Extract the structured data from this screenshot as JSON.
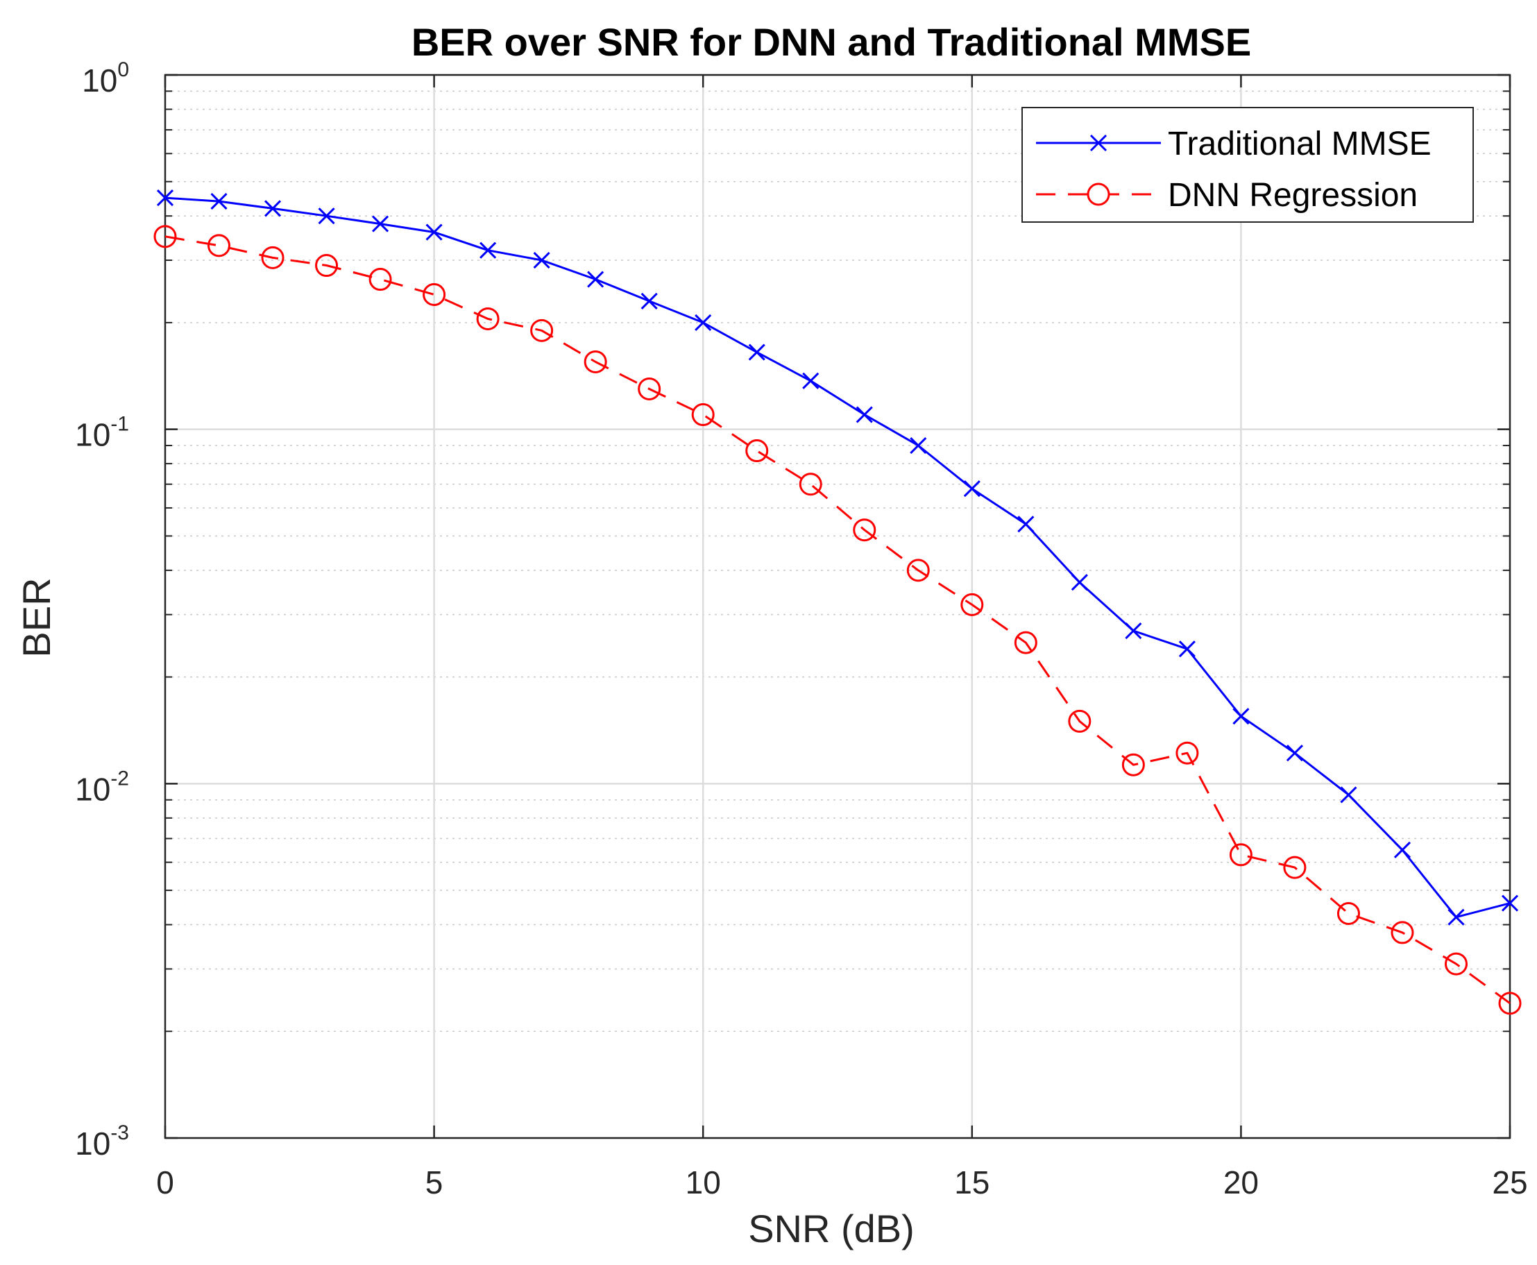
{
  "chart_data": {
    "type": "line",
    "title": "BER over SNR for DNN and Traditional MMSE",
    "xlabel": "SNR (dB)",
    "ylabel": "BER",
    "xlim": [
      0,
      25
    ],
    "ylim": [
      0.001,
      1
    ],
    "yscale": "log",
    "grid": true,
    "legend_position": "top-right",
    "x_ticks": [
      "0",
      "5",
      "10",
      "15",
      "20",
      "25"
    ],
    "y_ticks": [
      {
        "base": "10",
        "exp": "0"
      },
      {
        "base": "10",
        "exp": "-1"
      },
      {
        "base": "10",
        "exp": "-2"
      },
      {
        "base": "10",
        "exp": "-3"
      }
    ],
    "x": [
      0,
      1,
      2,
      3,
      4,
      5,
      6,
      7,
      8,
      9,
      10,
      11,
      12,
      13,
      14,
      15,
      16,
      17,
      18,
      19,
      20,
      21,
      22,
      23,
      24,
      25
    ],
    "series": [
      {
        "name": "Traditional MMSE",
        "color": "#0000ff",
        "line_style": "solid",
        "marker": "x",
        "values": [
          0.45,
          0.44,
          0.42,
          0.4,
          0.38,
          0.36,
          0.32,
          0.3,
          0.265,
          0.23,
          0.2,
          0.165,
          0.137,
          0.11,
          0.09,
          0.068,
          0.054,
          0.037,
          0.027,
          0.024,
          0.0155,
          0.0122,
          0.0093,
          0.0065,
          0.0042,
          0.0046
        ]
      },
      {
        "name": "DNN Regression",
        "color": "#ff0000",
        "line_style": "dashed",
        "marker": "o",
        "values": [
          0.35,
          0.33,
          0.305,
          0.29,
          0.265,
          0.24,
          0.205,
          0.19,
          0.155,
          0.13,
          0.11,
          0.087,
          0.07,
          0.052,
          0.04,
          0.032,
          0.025,
          0.015,
          0.0113,
          0.0122,
          0.0063,
          0.0058,
          0.0043,
          0.0038,
          0.0031,
          0.0024
        ]
      }
    ]
  }
}
